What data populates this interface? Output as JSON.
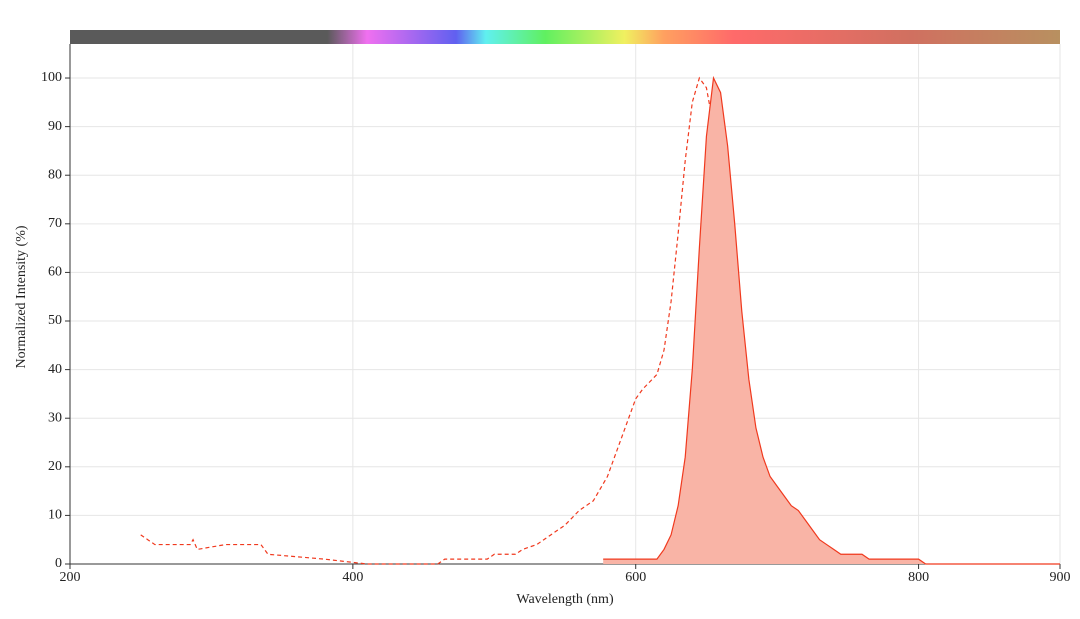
{
  "chart_data": {
    "type": "line",
    "x_label": "Wavelength (nm)",
    "y_label": "Normalized Intensity (%)",
    "xlim": [
      200,
      900
    ],
    "xticks": [
      200,
      400,
      600,
      800,
      900
    ],
    "ylim": [
      0,
      107
    ],
    "yticks": [
      0,
      10,
      20,
      30,
      40,
      50,
      60,
      70,
      80,
      90,
      100
    ],
    "grid": true,
    "series": [
      {
        "color": "#f0391e",
        "dashed": true,
        "filled": false,
        "x": [
          250,
          255,
          260,
          285,
          287,
          290,
          310,
          335,
          340,
          380,
          410,
          460,
          465,
          495,
          500,
          515,
          520,
          530,
          540,
          550,
          560,
          570,
          580,
          590,
          600,
          605,
          615,
          620,
          625,
          630,
          635,
          640,
          645,
          650,
          655,
          660,
          665,
          670,
          675,
          680,
          685,
          690,
          695,
          700,
          710
        ],
        "values": [
          6,
          5,
          4,
          4,
          5,
          3,
          4,
          4,
          2,
          1,
          0,
          0,
          1,
          1,
          2,
          2,
          3,
          4,
          6,
          8,
          11,
          13,
          18,
          26,
          34,
          36,
          39,
          44,
          54,
          68,
          83,
          95,
          100,
          98,
          90,
          74,
          52,
          32,
          19,
          11,
          6,
          3,
          2,
          1,
          1
        ]
      },
      {
        "color": "#f0391e",
        "fill": "#f9b4a6",
        "dashed": false,
        "filled": true,
        "x": [
          577,
          615,
          620,
          625,
          630,
          635,
          640,
          645,
          650,
          655,
          660,
          665,
          670,
          675,
          680,
          685,
          690,
          695,
          700,
          705,
          710,
          715,
          720,
          725,
          730,
          735,
          740,
          745,
          750,
          760,
          765,
          800,
          805,
          900
        ],
        "values": [
          1,
          1,
          3,
          6,
          12,
          22,
          40,
          65,
          88,
          100,
          97,
          86,
          70,
          52,
          38,
          28,
          22,
          18,
          16,
          14,
          12,
          11,
          9,
          7,
          5,
          4,
          3,
          2,
          2,
          2,
          1,
          1,
          0,
          0
        ]
      }
    ]
  }
}
